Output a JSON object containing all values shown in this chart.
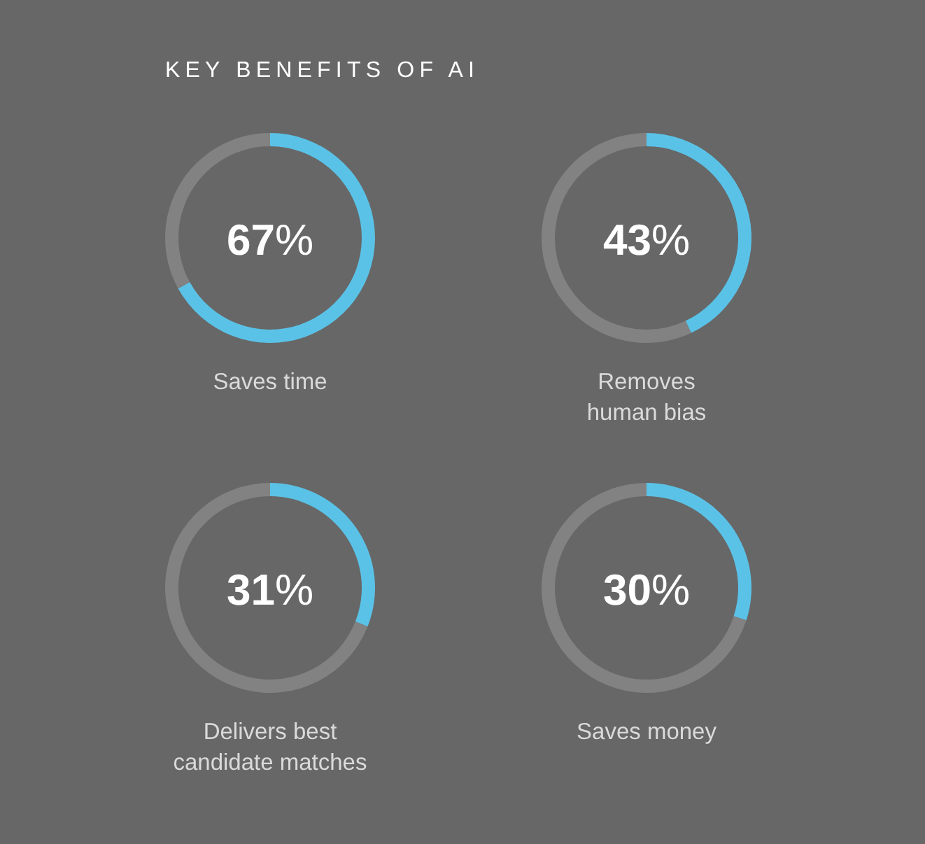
{
  "chart_data": [
    {
      "type": "donut",
      "title": "KEY BENEFITS OF AI",
      "xlabel": "Saves time",
      "categories": [
        null,
        null
      ],
      "values": [
        67,
        33
      ],
      "colors": [
        "#5bc2e7",
        "#828282"
      ],
      "annotations": [
        "67%"
      ]
    },
    {
      "type": "donut",
      "xlabel": "Removes\nhuman bias",
      "categories": [
        null,
        null
      ],
      "values": [
        43,
        57
      ],
      "colors": [
        "#5bc2e7",
        "#828282"
      ],
      "annotations": [
        "43%"
      ]
    },
    {
      "type": "donut",
      "xlabel": "Delivers best\ncandidate matches",
      "categories": [
        null,
        null
      ],
      "values": [
        31,
        69
      ],
      "colors": [
        "#5bc2e7",
        "#828282"
      ],
      "annotations": [
        "31%"
      ]
    },
    {
      "type": "donut",
      "xlabel": "Saves money",
      "categories": [
        null,
        null
      ],
      "values": [
        30,
        70
      ],
      "colors": [
        "#5bc2e7",
        "#828282"
      ],
      "annotations": [
        "30%"
      ]
    }
  ]
}
